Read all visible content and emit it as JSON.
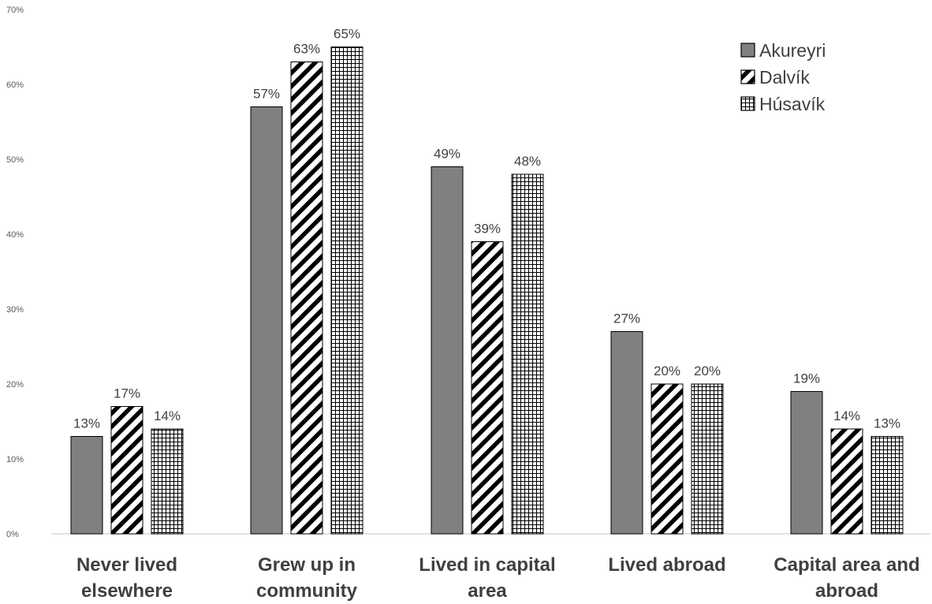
{
  "chart_data": {
    "type": "bar",
    "categories": [
      [
        "Never lived",
        "elsewhere"
      ],
      [
        "Grew up in",
        "community"
      ],
      [
        "Lived in capital",
        "area"
      ],
      [
        "Lived abroad"
      ],
      [
        "Capital area and",
        "abroad"
      ]
    ],
    "series": [
      {
        "name": "Akureyri",
        "values": [
          13,
          57,
          49,
          27,
          19
        ],
        "fill": "solid-gray"
      },
      {
        "name": "Dalvík",
        "values": [
          17,
          63,
          39,
          20,
          14
        ],
        "fill": "diagonal-stripes"
      },
      {
        "name": "Húsavík",
        "values": [
          14,
          65,
          48,
          20,
          13
        ],
        "fill": "grid"
      }
    ],
    "y_ticks": [
      "0%",
      "10%",
      "20%",
      "30%",
      "40%",
      "50%",
      "60%",
      "70%"
    ],
    "ylim": [
      0,
      70
    ],
    "value_suffix": "%",
    "grid": false,
    "legend_position": "top-right",
    "colors": {
      "bar_gray": "#808080",
      "outline": "#000000",
      "axis": "#d9d9d9",
      "text": "#404040"
    }
  }
}
